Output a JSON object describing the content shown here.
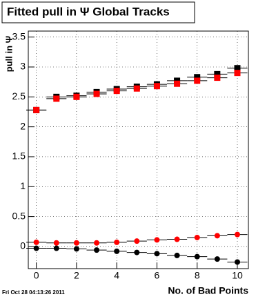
{
  "chart_data": {
    "type": "scatter",
    "title": "Fitted pull in  Ψ   Global Tracks",
    "y_label": "pull in Ψ",
    "x_label": "No. of Bad Points",
    "timestamp": "Fri Oct 28 04:13:26 2011",
    "x": [
      0,
      1,
      2,
      3,
      4,
      5,
      6,
      7,
      8,
      9,
      10
    ],
    "xerr": 0.5,
    "series": [
      {
        "color": "#000000",
        "marker": "square",
        "values": [
          2.28,
          2.5,
          2.52,
          2.58,
          2.63,
          2.67,
          2.71,
          2.77,
          2.83,
          2.88,
          2.98
        ]
      },
      {
        "color": "#ff0000",
        "marker": "square",
        "values": [
          2.28,
          2.47,
          2.5,
          2.55,
          2.6,
          2.64,
          2.68,
          2.72,
          2.77,
          2.82,
          2.9
        ]
      },
      {
        "color": "#000000",
        "marker": "circle",
        "values": [
          -0.03,
          -0.03,
          -0.04,
          -0.06,
          -0.08,
          -0.1,
          -0.12,
          -0.15,
          -0.17,
          -0.21,
          -0.26
        ]
      },
      {
        "color": "#ff0000",
        "marker": "circle",
        "values": [
          0.07,
          0.06,
          0.06,
          0.06,
          0.07,
          0.09,
          0.11,
          0.12,
          0.15,
          0.18,
          0.2
        ]
      }
    ],
    "xlim": [
      -0.4,
      10.55
    ],
    "ylim": [
      -0.37,
      3.6
    ],
    "xticks": [
      0,
      2,
      4,
      6,
      8,
      10
    ],
    "yticks": [
      0,
      0.5,
      1,
      1.5,
      2,
      2.5,
      3,
      3.5
    ],
    "grid": true
  }
}
